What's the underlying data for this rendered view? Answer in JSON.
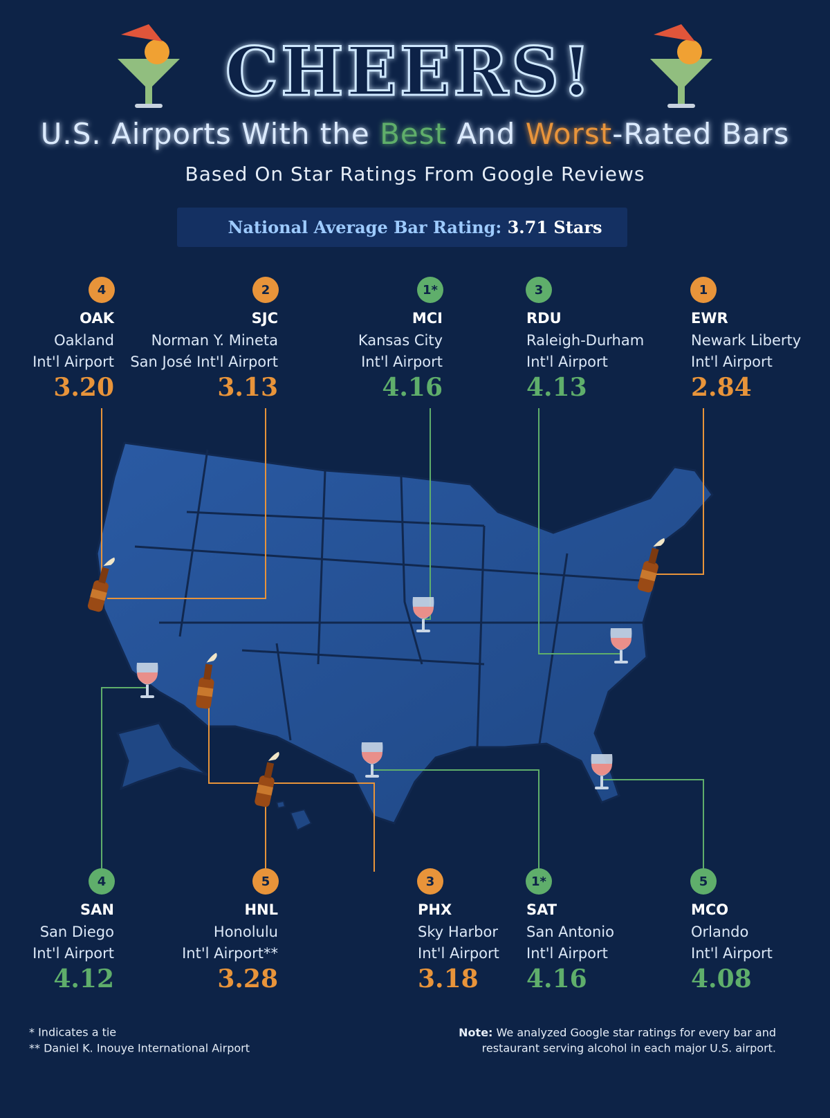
{
  "header": {
    "title": "CHEERS!",
    "subtitle": [
      "U.S. Airports With the ",
      "Best",
      " And ",
      "Worst",
      "-Rated Bars"
    ],
    "subtitle_colors": [
      "#dbeafe",
      "#5fae6b",
      "#dbeafe",
      "#e8943a",
      "#dbeafe"
    ],
    "tagline": "Based On Star Ratings From Google Reviews"
  },
  "national_average": {
    "label": "National Average Bar Rating:",
    "value": "3.71 Stars"
  },
  "airports_top": [
    {
      "rank": "4",
      "code": "OAK",
      "lines": [
        "Oakland",
        "Int'l Airport"
      ],
      "rating": "3.20",
      "color": "#e8943a"
    },
    {
      "rank": "2",
      "code": "SJC",
      "lines": [
        "Norman Y. Mineta",
        "San José Int'l Airport"
      ],
      "rating": "3.13",
      "color": "#e8943a"
    },
    {
      "rank": "1*",
      "code": "MCI",
      "lines": [
        "Kansas City",
        "Int'l Airport"
      ],
      "rating": "4.16",
      "color": "#5fae6b"
    },
    {
      "rank": "3",
      "code": "RDU",
      "lines": [
        "Raleigh-Durham",
        "Int'l Airport"
      ],
      "rating": "4.13",
      "color": "#5fae6b"
    },
    {
      "rank": "1",
      "code": "EWR",
      "lines": [
        "Newark Liberty",
        "Int'l Airport"
      ],
      "rating": "2.84",
      "color": "#e8943a"
    }
  ],
  "airports_bottom": [
    {
      "rank": "4",
      "code": "SAN",
      "lines": [
        "San Diego",
        "Int'l Airport"
      ],
      "rating": "4.12",
      "color": "#5fae6b"
    },
    {
      "rank": "5",
      "code": "HNL",
      "lines": [
        "Honolulu",
        "Int'l Airport**"
      ],
      "rating": "3.28",
      "color": "#e8943a"
    },
    {
      "rank": "3",
      "code": "PHX",
      "lines": [
        "Sky Harbor",
        "Int'l Airport"
      ],
      "rating": "3.18",
      "color": "#e8943a"
    },
    {
      "rank": "1*",
      "code": "SAT",
      "lines": [
        "San Antonio",
        "Int'l Airport"
      ],
      "rating": "4.16",
      "color": "#5fae6b"
    },
    {
      "rank": "5",
      "code": "MCO",
      "lines": [
        "Orlando",
        "Int'l Airport"
      ],
      "rating": "4.08",
      "color": "#5fae6b"
    }
  ],
  "footnotes": [
    "* Indicates a tie",
    "** Daniel K. Inouye International Airport"
  ],
  "note": {
    "label": "Note:",
    "lines": [
      "We analyzed Google star ratings for every bar and",
      "restaurant serving alcohol in each major U.S. airport."
    ]
  }
}
